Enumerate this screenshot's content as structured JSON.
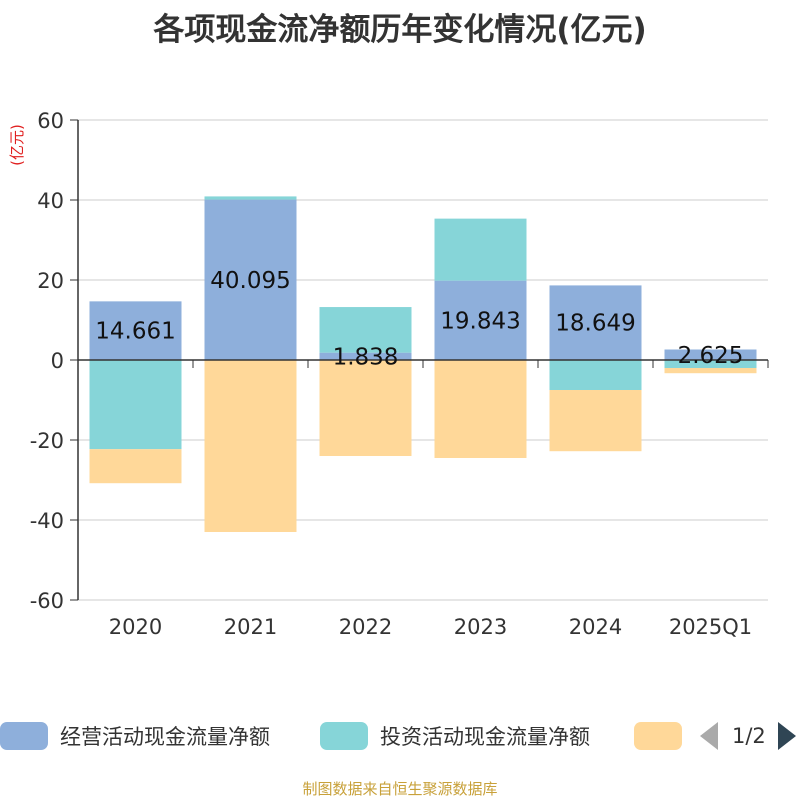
{
  "chart_data": {
    "type": "bar",
    "stacked": true,
    "title": "各项现金流净额历年变化情况(亿元)",
    "ylabel": "(亿元)",
    "ylim": [
      -60,
      60
    ],
    "yticks": [
      60,
      40,
      20,
      0,
      -20,
      -40,
      -60
    ],
    "categories": [
      "2020",
      "2021",
      "2022",
      "2023",
      "2024",
      "2025Q1"
    ],
    "series": [
      {
        "name": "经营活动现金流量净额",
        "color": "#8eafdb",
        "values": [
          14.661,
          40.095,
          1.838,
          19.843,
          18.649,
          2.625
        ],
        "labels": [
          "14.661",
          "40.095",
          "1.838",
          "19.843",
          "18.649",
          "2.625"
        ]
      },
      {
        "name": "投资活动现金流量净额",
        "color": "#86d5d8",
        "values": [
          -22.3,
          0.8,
          11.4,
          15.5,
          -7.5,
          -2.0
        ]
      },
      {
        "name": "",
        "color": "#ffd899",
        "values": [
          -8.5,
          -43.0,
          -24.0,
          -24.5,
          -15.3,
          -1.3
        ]
      }
    ]
  },
  "legend": {
    "items": [
      "经营活动现金流量净额",
      "投资活动现金流量净额",
      ""
    ],
    "page": "1/2"
  },
  "source": "制图数据来自恒生聚源数据库"
}
